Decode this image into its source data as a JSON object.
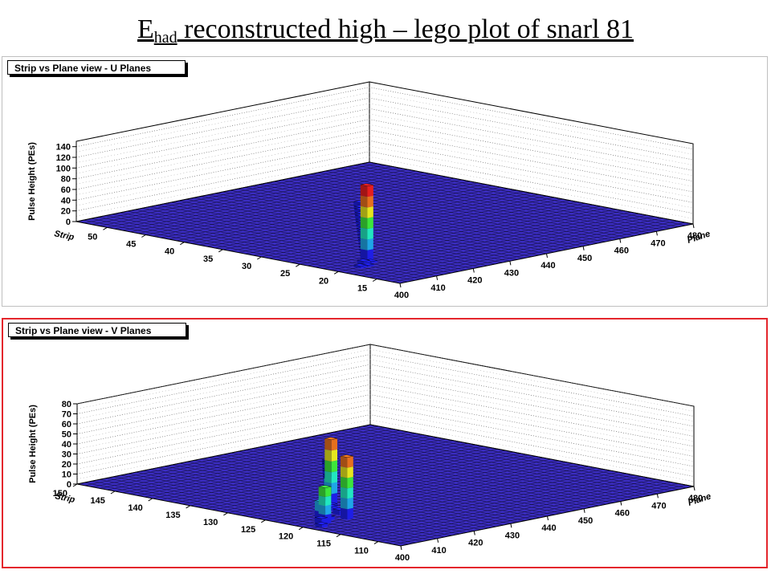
{
  "slide": {
    "title_main": "E",
    "title_sub": "had",
    "title_rest": " reconstructed high – lego plot of snarl 81"
  },
  "colors": {
    "floor": "#3b2dc2",
    "floor_grid": "#000000",
    "pad_u_border": "#bfbfbf",
    "pad_v_border": "#e4262c",
    "palette": [
      "#1e1ee6",
      "#1fa6e6",
      "#22e6c0",
      "#3de63a",
      "#e6e61e",
      "#e6701e",
      "#e61e1e"
    ]
  },
  "chart_data": [
    {
      "type": "lego",
      "title": "Strip vs Plane view - U Planes",
      "xlabel": "Plane",
      "ylabel": "Strip",
      "zlabel": "Pulse Height (PEs)",
      "xlim": [
        400,
        480
      ],
      "ylim": [
        12,
        54
      ],
      "zlim": [
        0,
        150
      ],
      "x_ticks": [
        400,
        410,
        420,
        430,
        440,
        450,
        460,
        470,
        480
      ],
      "y_ticks": [
        15,
        20,
        25,
        30,
        35,
        40,
        45,
        50
      ],
      "z_ticks": [
        0,
        20,
        40,
        60,
        80,
        100,
        120,
        140
      ],
      "grid": true,
      "bars": [
        {
          "plane": 406,
          "strip": 20,
          "pe": 4
        },
        {
          "plane": 408,
          "strip": 20,
          "pe": 3
        },
        {
          "plane": 409,
          "strip": 21,
          "pe": 6
        },
        {
          "plane": 411,
          "strip": 21,
          "pe": 3
        },
        {
          "plane": 412,
          "strip": 22,
          "pe": 140
        },
        {
          "plane": 414,
          "strip": 23,
          "pe": 3
        },
        {
          "plane": 416,
          "strip": 24,
          "pe": 2
        },
        {
          "plane": 418,
          "strip": 25,
          "pe": 3
        },
        {
          "plane": 420,
          "strip": 26,
          "pe": 2
        },
        {
          "plane": 422,
          "strip": 27,
          "pe": 3
        },
        {
          "plane": 424,
          "strip": 28,
          "pe": 4
        },
        {
          "plane": 426,
          "strip": 29,
          "pe": 3
        },
        {
          "plane": 428,
          "strip": 30,
          "pe": 3
        },
        {
          "plane": 430,
          "strip": 31,
          "pe": 4
        },
        {
          "plane": 432,
          "strip": 32,
          "pe": 3
        },
        {
          "plane": 434,
          "strip": 33,
          "pe": 4
        },
        {
          "plane": 436,
          "strip": 34,
          "pe": 5
        },
        {
          "plane": 438,
          "strip": 35,
          "pe": 4
        },
        {
          "plane": 440,
          "strip": 36,
          "pe": 6
        },
        {
          "plane": 442,
          "strip": 37,
          "pe": 5
        },
        {
          "plane": 444,
          "strip": 38,
          "pe": 7
        },
        {
          "plane": 446,
          "strip": 39,
          "pe": 6
        },
        {
          "plane": 448,
          "strip": 40,
          "pe": 9
        }
      ]
    },
    {
      "type": "lego",
      "title": "Strip vs Plane view - V Planes",
      "xlabel": "Plane",
      "ylabel": "Strip",
      "zlabel": "Pulse Height (PEs)",
      "xlim": [
        400,
        480
      ],
      "ylim": [
        107,
        150
      ],
      "zlim": [
        0,
        80
      ],
      "x_ticks": [
        400,
        410,
        420,
        430,
        440,
        450,
        460,
        470,
        480
      ],
      "y_ticks": [
        110,
        115,
        120,
        125,
        130,
        135,
        140,
        145,
        150
      ],
      "z_ticks": [
        0,
        10,
        20,
        30,
        40,
        50,
        60,
        70,
        80
      ],
      "grid": true,
      "bars": [
        {
          "plane": 403,
          "strip": 119,
          "pe": 3
        },
        {
          "plane": 405,
          "strip": 120,
          "pe": 6
        },
        {
          "plane": 406,
          "strip": 120,
          "pe": 36
        },
        {
          "plane": 407,
          "strip": 121,
          "pe": 20
        },
        {
          "plane": 409,
          "strip": 121,
          "pe": 3
        },
        {
          "plane": 412,
          "strip": 120,
          "pe": 62
        },
        {
          "plane": 414,
          "strip": 122,
          "pe": 5
        },
        {
          "plane": 416,
          "strip": 124,
          "pe": 4
        },
        {
          "plane": 418,
          "strip": 125,
          "pe": 3
        },
        {
          "plane": 420,
          "strip": 126,
          "pe": 65
        },
        {
          "plane": 422,
          "strip": 127,
          "pe": 4
        },
        {
          "plane": 424,
          "strip": 128,
          "pe": 3
        },
        {
          "plane": 426,
          "strip": 129,
          "pe": 2
        },
        {
          "plane": 428,
          "strip": 130,
          "pe": 14
        },
        {
          "plane": 430,
          "strip": 131,
          "pe": 6
        },
        {
          "plane": 432,
          "strip": 132,
          "pe": 3
        },
        {
          "plane": 434,
          "strip": 133,
          "pe": 5
        },
        {
          "plane": 436,
          "strip": 134,
          "pe": 4
        },
        {
          "plane": 438,
          "strip": 135,
          "pe": 3
        },
        {
          "plane": 440,
          "strip": 136,
          "pe": 4
        },
        {
          "plane": 442,
          "strip": 137,
          "pe": 3
        },
        {
          "plane": 444,
          "strip": 138,
          "pe": 5
        },
        {
          "plane": 446,
          "strip": 139,
          "pe": 4
        },
        {
          "plane": 448,
          "strip": 140,
          "pe": 3
        }
      ]
    }
  ]
}
